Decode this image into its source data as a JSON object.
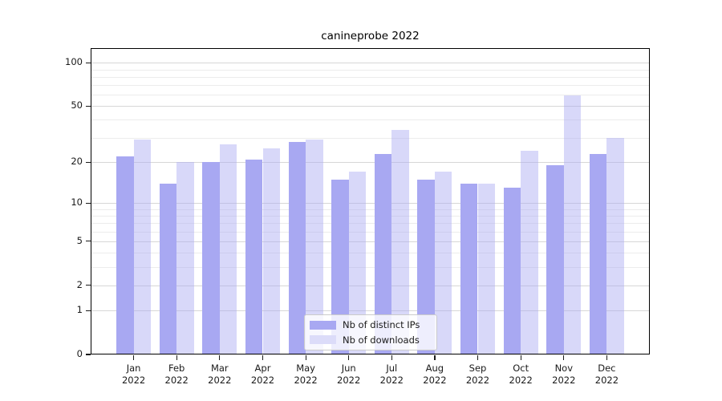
{
  "title": "canineprobe 2022",
  "chart_data": {
    "type": "bar",
    "title": "canineprobe 2022",
    "categories": [
      "Jan",
      "Feb",
      "Mar",
      "Apr",
      "May",
      "Jun",
      "Jul",
      "Aug",
      "Sep",
      "Oct",
      "Nov",
      "Dec"
    ],
    "category_year": "2022",
    "series": [
      {
        "name": "Nb of distinct IPs",
        "color": "#a8a8f2",
        "values": [
          22,
          14,
          20,
          21,
          28,
          15,
          23,
          15,
          14,
          13,
          19,
          23
        ]
      },
      {
        "name": "Nb of downloads",
        "color": "rgba(168,168,242,0.45)",
        "swatch_color": "#dcdcf9",
        "values": [
          29,
          20,
          27,
          25,
          29,
          17,
          34,
          17,
          14,
          24,
          59,
          30
        ]
      }
    ],
    "y_axis": {
      "scale": "symlog-base10",
      "tick_labels": [
        100,
        50,
        20,
        10,
        5,
        2,
        1,
        0
      ],
      "minor_gridlines": [
        90,
        80,
        70,
        60,
        40,
        30,
        9,
        8,
        7,
        6,
        4,
        3
      ],
      "ylim": [
        0,
        127
      ]
    },
    "legend": {
      "position": "lower center",
      "entries": [
        "Nb of distinct IPs",
        "Nb of downloads"
      ]
    },
    "grid": true
  }
}
